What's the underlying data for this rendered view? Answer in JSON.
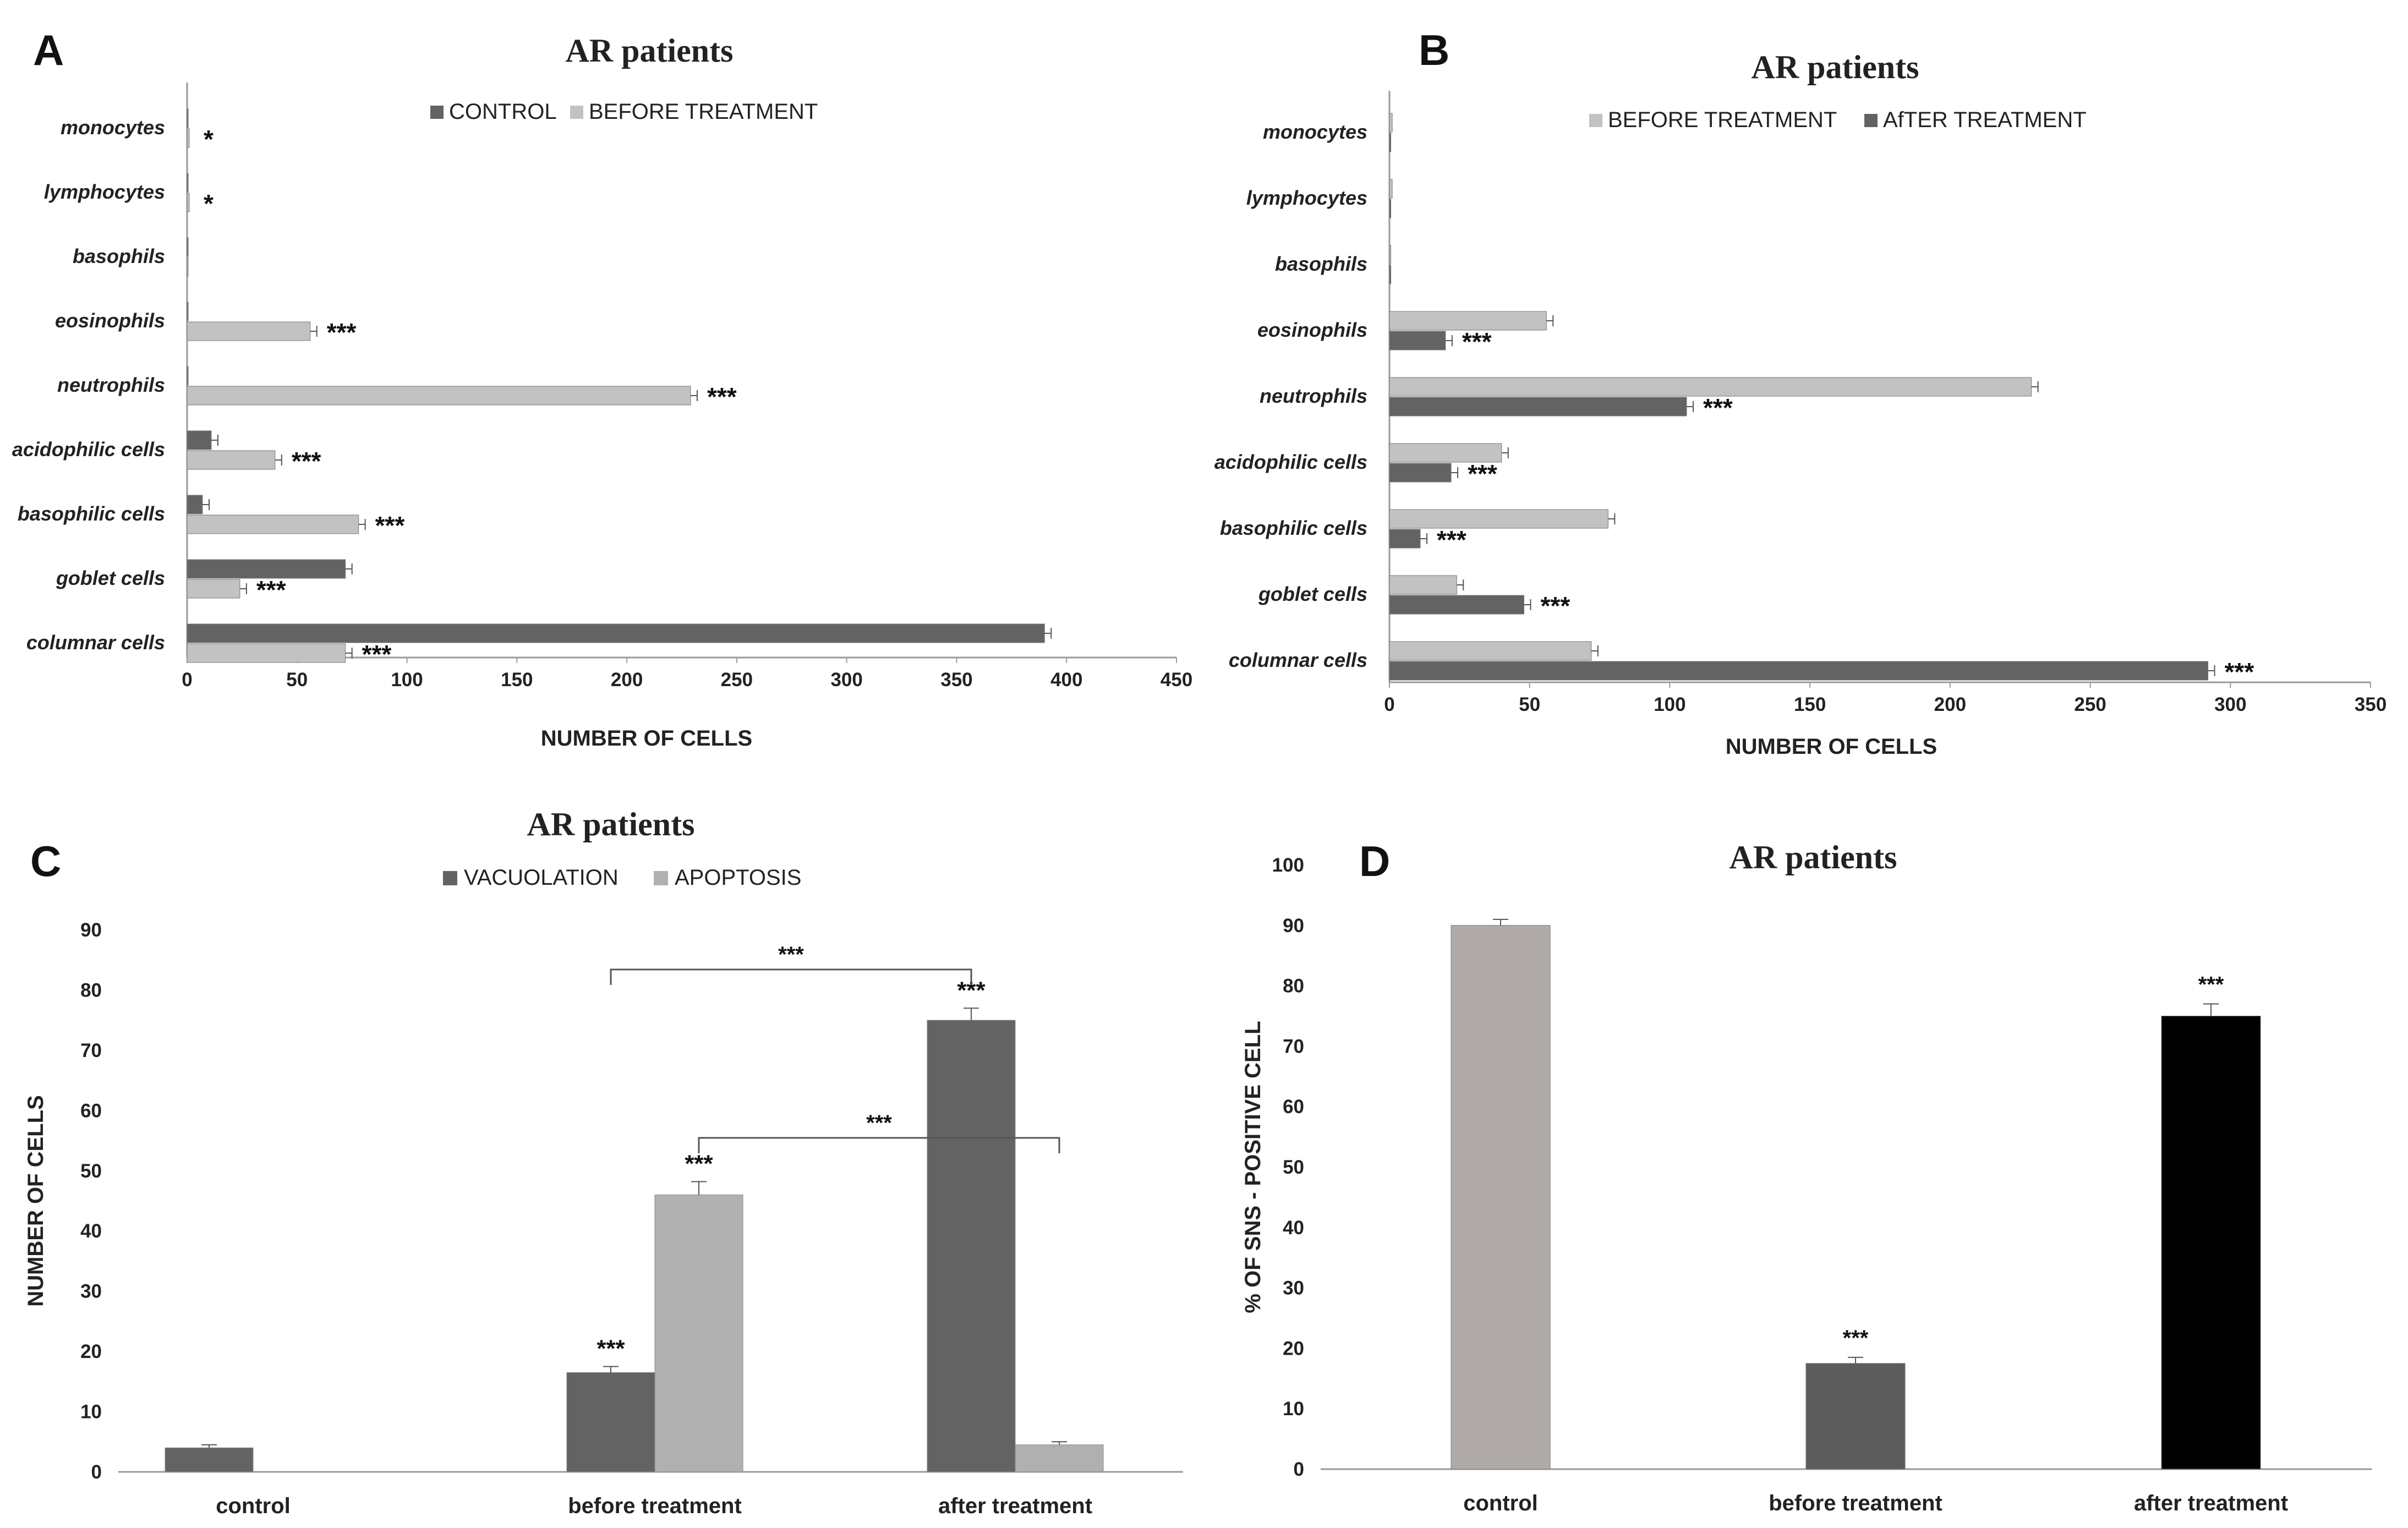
{
  "colors": {
    "dark": "#636363",
    "light": "#c2c2c2",
    "c_light": "#b0b0b0",
    "d_control": "#b0aba8",
    "d_before": "#5c5c5c",
    "d_after": "#000000"
  },
  "chart_data": [
    {
      "panel": "A",
      "type": "bar",
      "orientation": "horizontal",
      "title": "AR patients",
      "xlabel": "NUMBER OF CELLS",
      "xlim": [
        0,
        450
      ],
      "ticks": [
        "0",
        "50",
        "100",
        "150",
        "200",
        "250",
        "300",
        "350",
        "400",
        "450"
      ],
      "categories": [
        "monocytes",
        "lymphocytes",
        "basophils",
        "eosinophils",
        "neutrophils",
        "acidophilic cells",
        "basophilic cells",
        "goblet cells",
        "columnar cells"
      ],
      "series": [
        {
          "name": "CONTROL",
          "values": [
            0,
            0,
            0,
            0,
            0,
            11,
            7,
            72,
            390
          ]
        },
        {
          "name": "BEFORE TREATMENT",
          "values": [
            1,
            1,
            0.5,
            56,
            229,
            40,
            78,
            24,
            72
          ]
        }
      ],
      "significance": [
        "*",
        "*",
        "",
        "***",
        "***",
        "***",
        "***",
        "***",
        "***"
      ]
    },
    {
      "panel": "B",
      "type": "bar",
      "orientation": "horizontal",
      "title": "AR patients",
      "xlabel": "NUMBER OF CELLS",
      "xlim": [
        0,
        350
      ],
      "ticks": [
        "0",
        "50",
        "100",
        "150",
        "200",
        "250",
        "300",
        "350"
      ],
      "categories": [
        "monocytes",
        "lymphocytes",
        "basophils",
        "eosinophils",
        "neutrophils",
        "acidophilic cells",
        "basophilic cells",
        "goblet cells",
        "columnar cells"
      ],
      "series": [
        {
          "name": "BEFORE TREATMENT",
          "values": [
            1,
            1,
            0.5,
            56,
            229,
            40,
            78,
            24,
            72
          ]
        },
        {
          "name": "AfTER TREATMENT",
          "values": [
            0.5,
            0.5,
            0.5,
            20,
            106,
            22,
            11,
            48,
            292
          ]
        }
      ],
      "significance": [
        "",
        "",
        "",
        "***",
        "***",
        "***",
        "***",
        "***",
        "***"
      ]
    },
    {
      "panel": "C",
      "type": "bar",
      "title": "AR patients",
      "ylabel": "NUMBER OF CELLS",
      "ylim": [
        0,
        90
      ],
      "ticks": [
        "0",
        "10",
        "20",
        "30",
        "40",
        "50",
        "60",
        "70",
        "80",
        "90"
      ],
      "categories": [
        "control",
        "before treatment",
        "after treatment"
      ],
      "series": [
        {
          "name": "VACUOLATION",
          "values": [
            4,
            16.5,
            75
          ],
          "errors": [
            0.5,
            1,
            2
          ],
          "stars": [
            "",
            "***",
            "***"
          ]
        },
        {
          "name": "APOPTOSIS",
          "values": [
            0,
            46,
            4.5
          ],
          "errors": [
            0,
            2.2,
            0.5
          ],
          "stars": [
            "",
            "***",
            ""
          ]
        }
      ],
      "brackets": [
        {
          "from": "before treatment VACUOLATION",
          "to": "after treatment VACUOLATION",
          "label": "***"
        },
        {
          "from": "before treatment APOPTOSIS",
          "to": "after treatment APOPTOSIS",
          "label": "***"
        }
      ]
    },
    {
      "panel": "D",
      "type": "bar",
      "title": "AR patients",
      "ylabel": "% OF SNS - POSITIVE  CELL",
      "ylim": [
        0,
        100
      ],
      "ticks": [
        "0",
        "10",
        "20",
        "30",
        "40",
        "50",
        "60",
        "70",
        "80",
        "90",
        "100"
      ],
      "categories": [
        "control",
        "before treatment",
        "after treatment"
      ],
      "values": [
        90,
        17.5,
        75
      ],
      "errors": [
        1,
        1,
        2
      ],
      "stars": [
        "",
        "***",
        "***"
      ]
    }
  ]
}
